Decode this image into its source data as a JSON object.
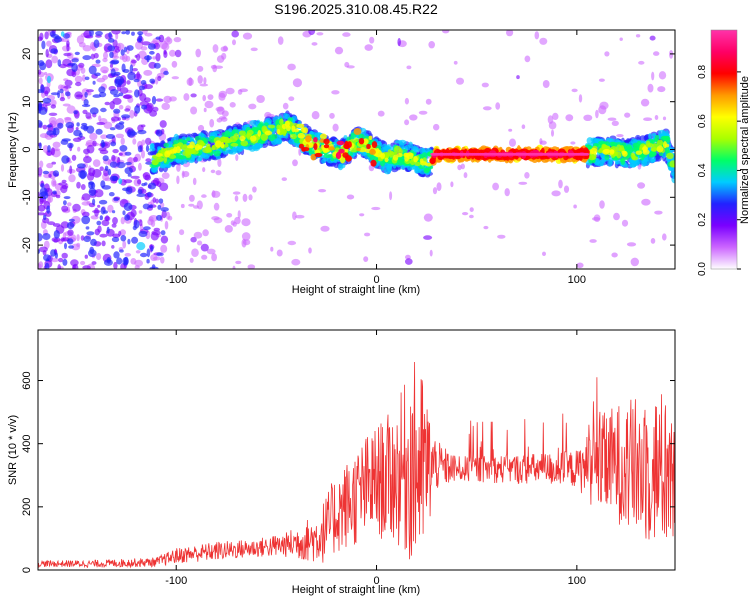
{
  "page": {
    "title": "S196.2025.310.08.45.R22"
  },
  "chart_data": [
    {
      "type": "heatmap",
      "xlabel": "Height of straight line (km)",
      "ylabel": "Frequency (Hz)",
      "xlim": [
        -169,
        149
      ],
      "ylim": [
        -25,
        25
      ],
      "xticks": [
        -100,
        0,
        100
      ],
      "yticks": [
        -20,
        -10,
        0,
        10,
        20
      ],
      "xtick_labels": [
        "-100",
        "0",
        "100"
      ],
      "ytick_labels": [
        "-20",
        "-10",
        "0",
        "10",
        "20"
      ],
      "grid": false,
      "colorbar": {
        "label": "Normalized spectral amplitude",
        "range": [
          0,
          0.97
        ],
        "ticks": [
          0.0,
          0.2,
          0.4,
          0.6,
          0.8
        ],
        "tick_labels": [
          "0.0",
          "0.2",
          "0.4",
          "0.6",
          "0.8"
        ],
        "colors": [
          "#ffffff",
          "#cc66ff",
          "#7a00ff",
          "#2222ff",
          "#00ccff",
          "#00ff66",
          "#aaff00",
          "#ffff00",
          "#ff9900",
          "#ff0000",
          "#ff0066",
          "#ff33aa"
        ]
      },
      "ridge": {
        "x": [
          -110,
          -100,
          -80,
          -60,
          -50,
          -45,
          -38,
          -32,
          -25,
          -18,
          -12,
          -8,
          -2,
          5,
          12,
          20,
          25,
          30,
          60,
          100,
          105,
          115,
          125,
          135,
          145,
          149
        ],
        "freq": [
          -2,
          0,
          1,
          3,
          4,
          5,
          3,
          1,
          0,
          -1,
          1,
          2,
          0,
          -2,
          -1,
          -2,
          -3,
          -1,
          -1,
          -1,
          -1,
          0,
          -1,
          0,
          1,
          -4
        ]
      },
      "strong_band": {
        "x_start": 28,
        "x_end": 105,
        "freq": -1
      }
    },
    {
      "type": "line",
      "xlabel": "Height of straight line (km)",
      "ylabel": "SNR (10 * v/v)",
      "xlim": [
        -169,
        149
      ],
      "ylim": [
        0,
        760
      ],
      "xticks": [
        -100,
        0,
        100
      ],
      "yticks": [
        0,
        200,
        400,
        600
      ],
      "xtick_labels": [
        "-100",
        "0",
        "100"
      ],
      "ytick_labels": [
        "0",
        "200",
        "400",
        "600"
      ],
      "grid": false,
      "color": "#ee3333",
      "profile": {
        "x": [
          -169,
          -140,
          -110,
          -100,
          -80,
          -60,
          -45,
          -38,
          -30,
          -25,
          -20,
          -12,
          -5,
          0,
          10,
          18,
          22,
          30,
          40,
          60,
          80,
          100,
          110,
          120,
          130,
          140,
          149
        ],
        "base": [
          20,
          20,
          25,
          45,
          60,
          70,
          80,
          90,
          100,
          130,
          180,
          220,
          260,
          280,
          300,
          340,
          320,
          330,
          320,
          320,
          320,
          320,
          330,
          340,
          320,
          320,
          320
        ],
        "spread": [
          10,
          12,
          15,
          25,
          30,
          30,
          40,
          60,
          80,
          110,
          130,
          150,
          170,
          180,
          220,
          330,
          330,
          80,
          40,
          45,
          50,
          60,
          150,
          190,
          230,
          250,
          260
        ]
      }
    }
  ]
}
